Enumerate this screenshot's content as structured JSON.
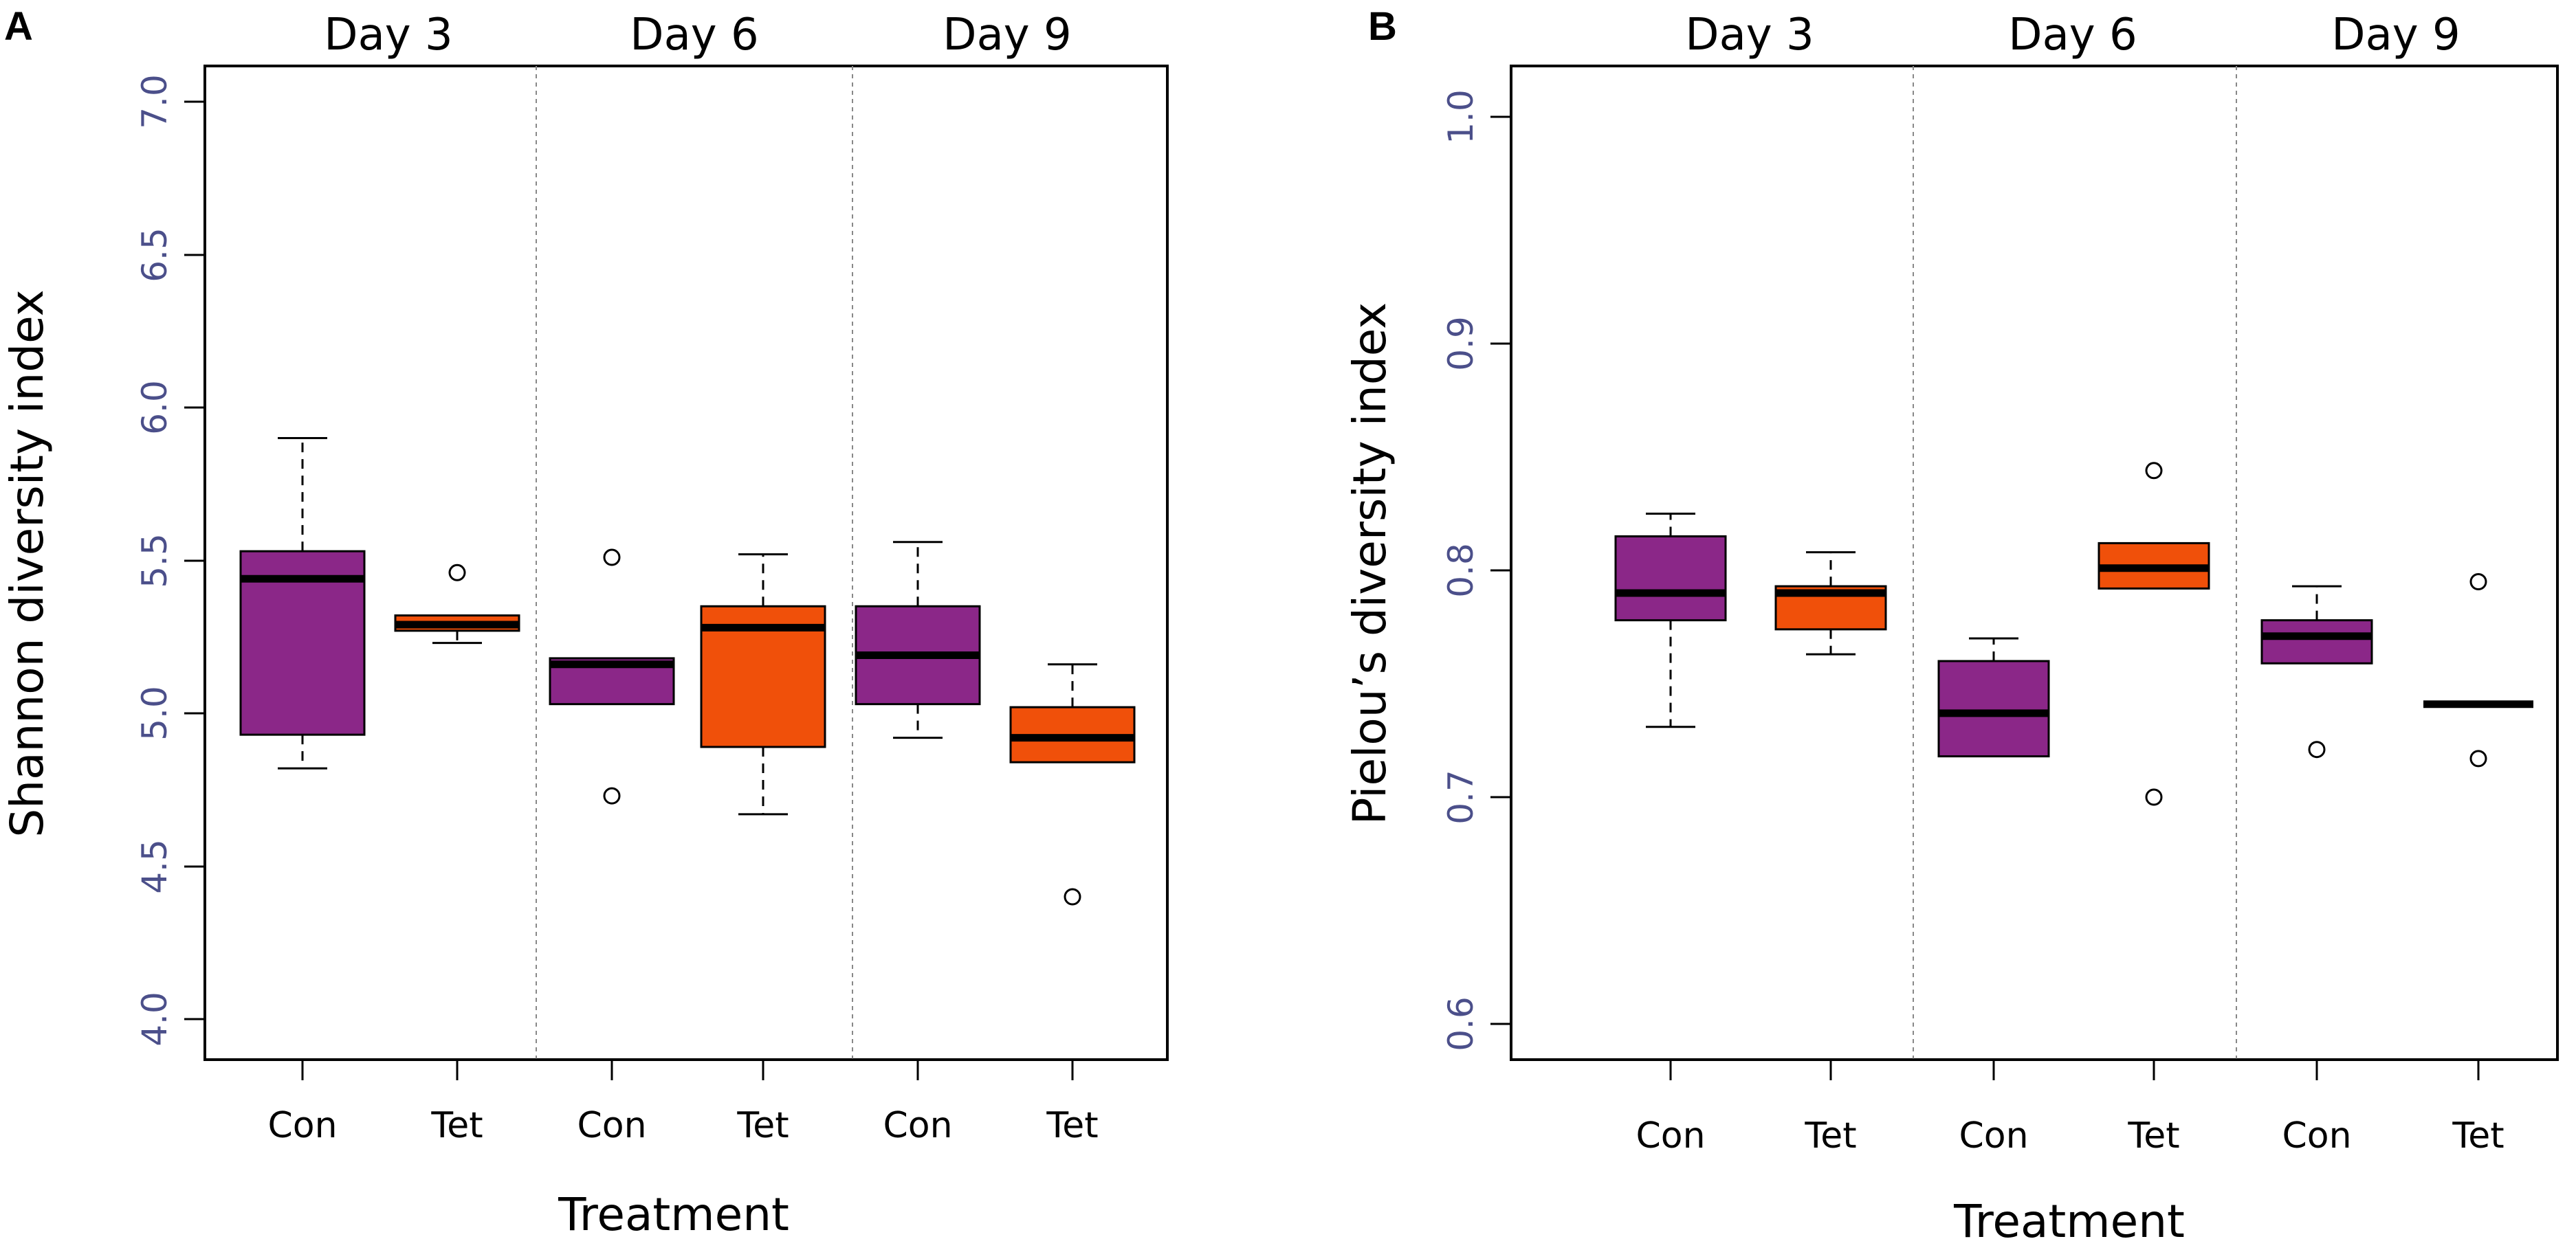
{
  "colors": {
    "con": "#8b2788",
    "tet": "#f0500a"
  },
  "chart_data": [
    {
      "type": "box",
      "panel": "A",
      "title": "",
      "xlabel": "Treatment",
      "ylabel": "Shannon diversity index",
      "ylim": [
        4.0,
        7.0
      ],
      "yticks": [
        "4.0",
        "4.5",
        "5.0",
        "5.5",
        "6.0",
        "6.5",
        "7.0"
      ],
      "groups": [
        "Day 3",
        "Day 6",
        "Day 9"
      ],
      "categories": [
        "Con",
        "Tet",
        "Con",
        "Tet",
        "Con",
        "Tet"
      ],
      "boxes": [
        {
          "group": "Day 3",
          "treatment": "Con",
          "whisker_low": 4.82,
          "q1": 4.93,
          "median": 5.44,
          "q3": 5.53,
          "whisker_high": 5.9,
          "outliers": []
        },
        {
          "group": "Day 3",
          "treatment": "Tet",
          "whisker_low": 5.23,
          "q1": 5.27,
          "median": 5.29,
          "q3": 5.32,
          "whisker_high": 5.32,
          "outliers": [
            5.46
          ]
        },
        {
          "group": "Day 6",
          "treatment": "Con",
          "whisker_low": 5.03,
          "q1": 5.03,
          "median": 5.16,
          "q3": 5.18,
          "whisker_high": 5.18,
          "outliers": [
            5.51,
            4.73
          ]
        },
        {
          "group": "Day 6",
          "treatment": "Tet",
          "whisker_low": 4.67,
          "q1": 4.89,
          "median": 5.28,
          "q3": 5.35,
          "whisker_high": 5.52,
          "outliers": []
        },
        {
          "group": "Day 9",
          "treatment": "Con",
          "whisker_low": 4.92,
          "q1": 5.03,
          "median": 5.19,
          "q3": 5.35,
          "whisker_high": 5.56,
          "outliers": []
        },
        {
          "group": "Day 9",
          "treatment": "Tet",
          "whisker_low": 4.84,
          "q1": 4.84,
          "median": 4.92,
          "q3": 5.02,
          "whisker_high": 5.16,
          "outliers": [
            4.4
          ]
        }
      ]
    },
    {
      "type": "box",
      "panel": "B",
      "title": "",
      "xlabel": "Treatment",
      "ylabel": "Pielou’s diversity index",
      "ylim": [
        0.6,
        1.0
      ],
      "yticks": [
        "0.6",
        "0.7",
        "0.8",
        "0.9",
        "1.0"
      ],
      "groups": [
        "Day 3",
        "Day 6",
        "Day 9"
      ],
      "categories": [
        "Con",
        "Tet",
        "Con",
        "Tet",
        "Con",
        "Tet"
      ],
      "boxes": [
        {
          "group": "Day 3",
          "treatment": "Con",
          "whisker_low": 0.731,
          "q1": 0.778,
          "median": 0.79,
          "q3": 0.815,
          "whisker_high": 0.825,
          "outliers": []
        },
        {
          "group": "Day 3",
          "treatment": "Tet",
          "whisker_low": 0.763,
          "q1": 0.774,
          "median": 0.79,
          "q3": 0.793,
          "whisker_high": 0.808,
          "outliers": []
        },
        {
          "group": "Day 6",
          "treatment": "Con",
          "whisker_low": 0.718,
          "q1": 0.718,
          "median": 0.737,
          "q3": 0.76,
          "whisker_high": 0.77,
          "outliers": []
        },
        {
          "group": "Day 6",
          "treatment": "Tet",
          "whisker_low": 0.792,
          "q1": 0.792,
          "median": 0.801,
          "q3": 0.812,
          "whisker_high": 0.812,
          "outliers": [
            0.844,
            0.7
          ]
        },
        {
          "group": "Day 9",
          "treatment": "Con",
          "whisker_low": 0.759,
          "q1": 0.759,
          "median": 0.771,
          "q3": 0.778,
          "whisker_high": 0.793,
          "outliers": [
            0.721
          ]
        },
        {
          "group": "Day 9",
          "treatment": "Tet",
          "whisker_low": 0.741,
          "q1": 0.741,
          "median": 0.741,
          "q3": 0.741,
          "whisker_high": 0.741,
          "outliers": [
            0.795,
            0.717
          ]
        }
      ]
    }
  ]
}
